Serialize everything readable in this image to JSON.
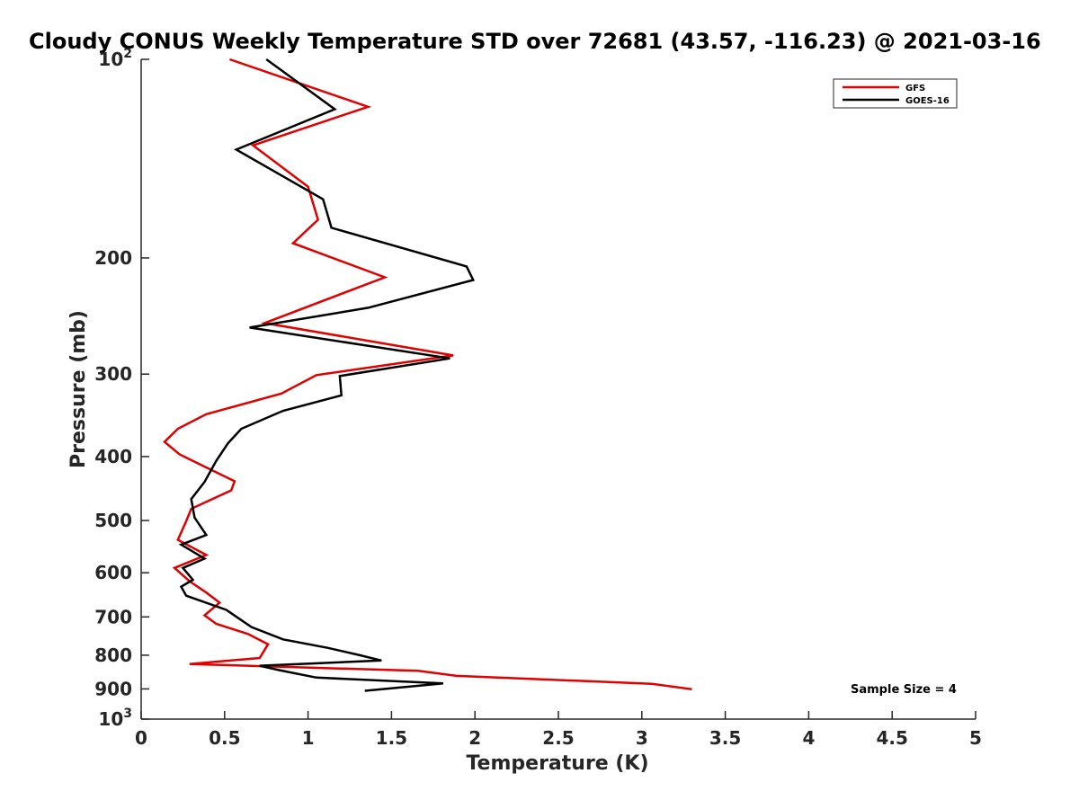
{
  "chart_data": {
    "type": "line",
    "title": "Cloudy CONUS Weekly Temperature STD over 72681 (43.57, -116.23) @ 2021-03-16",
    "xlabel": "Temperature (K)",
    "ylabel": "Pressure (mb)",
    "xlim": [
      0,
      5
    ],
    "ylim": [
      100,
      1000
    ],
    "y_scale": "log",
    "y_reversed": true,
    "x_ticks": [
      "0",
      "0.5",
      "1",
      "1.5",
      "2",
      "2.5",
      "3",
      "3.5",
      "4",
      "4.5",
      "5"
    ],
    "x_tick_values": [
      0,
      0.5,
      1,
      1.5,
      2,
      2.5,
      3,
      3.5,
      4,
      4.5,
      5
    ],
    "y_ticks": [
      {
        "value": 100,
        "base": "10",
        "exp": "2"
      },
      {
        "value": 200,
        "label": "200"
      },
      {
        "value": 300,
        "label": "300"
      },
      {
        "value": 400,
        "label": "400"
      },
      {
        "value": 500,
        "label": "500"
      },
      {
        "value": 600,
        "label": "600"
      },
      {
        "value": 700,
        "label": "700"
      },
      {
        "value": 800,
        "label": "800"
      },
      {
        "value": 900,
        "label": "900"
      },
      {
        "value": 1000,
        "base": "10",
        "exp": "3"
      }
    ],
    "legend_position": "top-right",
    "grid": false,
    "annotation": "Sample Size = 4",
    "series": [
      {
        "name": "GFS",
        "color": "#e00000",
        "points": [
          [
            0.53,
            100
          ],
          [
            1.36,
            118
          ],
          [
            0.67,
            135
          ],
          [
            1.0,
            156
          ],
          [
            1.06,
            175
          ],
          [
            0.91,
            190
          ],
          [
            1.46,
            214
          ],
          [
            0.74,
            251
          ],
          [
            1.87,
            281
          ],
          [
            1.05,
            301
          ],
          [
            0.84,
            321
          ],
          [
            0.39,
            345
          ],
          [
            0.22,
            363
          ],
          [
            0.14,
            380
          ],
          [
            0.23,
            397
          ],
          [
            0.56,
            436
          ],
          [
            0.54,
            450
          ],
          [
            0.3,
            480
          ],
          [
            0.27,
            501
          ],
          [
            0.22,
            535
          ],
          [
            0.39,
            564
          ],
          [
            0.2,
            590
          ],
          [
            0.29,
            618
          ],
          [
            0.39,
            643
          ],
          [
            0.47,
            666
          ],
          [
            0.38,
            696
          ],
          [
            0.45,
            717
          ],
          [
            0.64,
            743
          ],
          [
            0.76,
            770
          ],
          [
            0.71,
            808
          ],
          [
            0.29,
            825
          ],
          [
            1.66,
            845
          ],
          [
            1.89,
            860
          ],
          [
            3.06,
            884
          ],
          [
            3.3,
            901
          ]
        ]
      },
      {
        "name": "GOES-16",
        "color": "#000000",
        "points": [
          [
            0.75,
            100
          ],
          [
            1.16,
            119
          ],
          [
            0.57,
            137
          ],
          [
            1.09,
            163
          ],
          [
            1.14,
            180
          ],
          [
            1.95,
            206
          ],
          [
            1.99,
            216
          ],
          [
            1.36,
            238
          ],
          [
            0.65,
            255
          ],
          [
            1.85,
            284
          ],
          [
            1.19,
            302
          ],
          [
            1.2,
            323
          ],
          [
            0.85,
            341
          ],
          [
            0.6,
            363
          ],
          [
            0.52,
            382
          ],
          [
            0.45,
            406
          ],
          [
            0.38,
            437
          ],
          [
            0.3,
            464
          ],
          [
            0.32,
            495
          ],
          [
            0.39,
            526
          ],
          [
            0.24,
            544
          ],
          [
            0.38,
            571
          ],
          [
            0.25,
            590
          ],
          [
            0.31,
            615
          ],
          [
            0.24,
            630
          ],
          [
            0.27,
            650
          ],
          [
            0.51,
            683
          ],
          [
            0.66,
            725
          ],
          [
            0.85,
            757
          ],
          [
            1.12,
            780
          ],
          [
            1.31,
            800
          ],
          [
            1.44,
            815
          ],
          [
            0.71,
            830
          ],
          [
            0.83,
            843
          ],
          [
            1.05,
            865
          ],
          [
            1.81,
            883
          ],
          [
            1.34,
            906
          ]
        ]
      }
    ]
  }
}
